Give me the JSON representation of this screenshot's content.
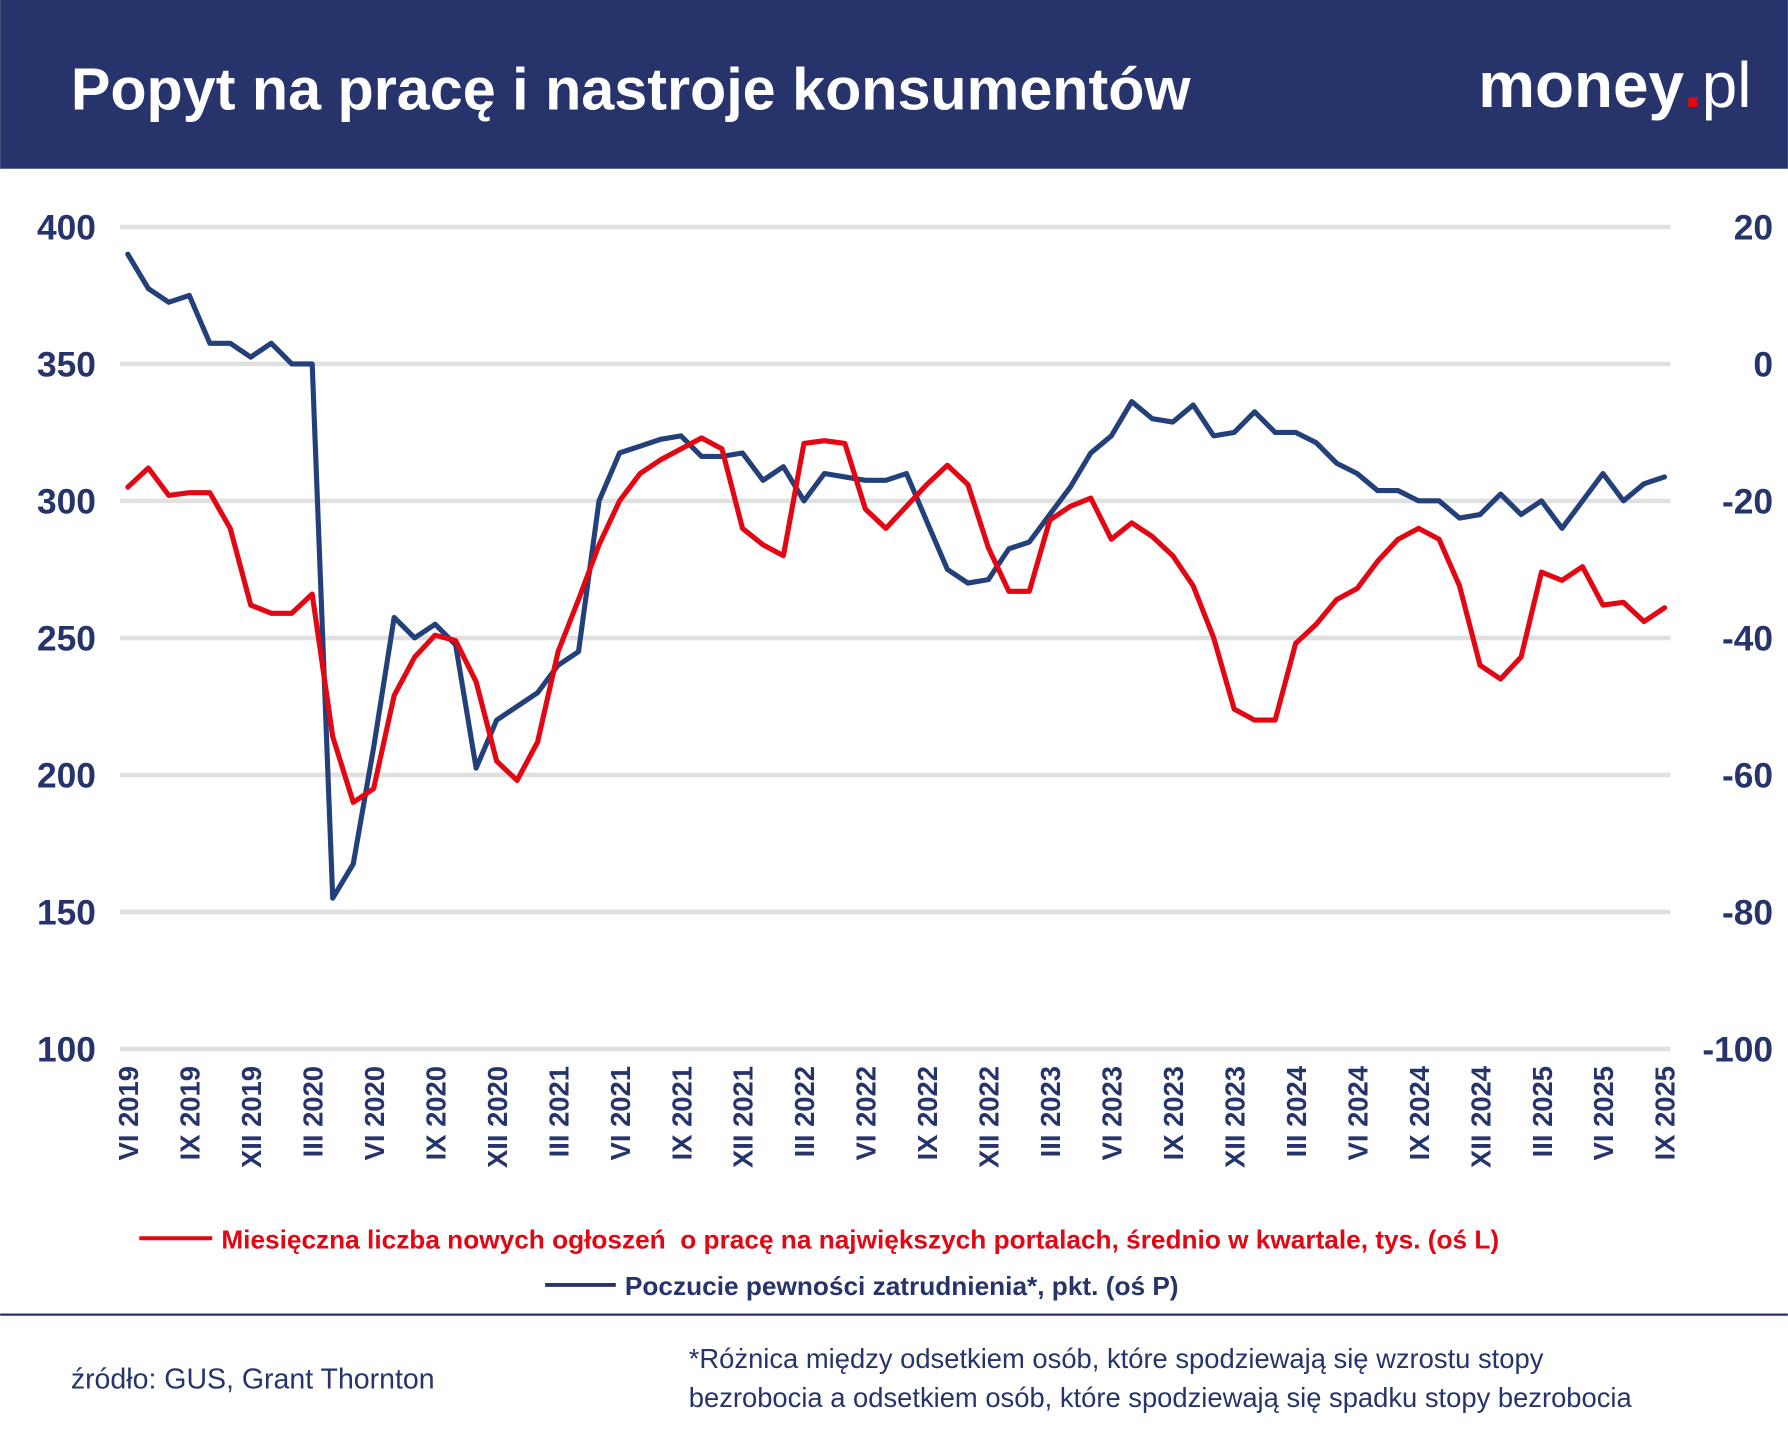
{
  "header": {
    "title": "Popyt na pracę i nastroje konsumentów",
    "logo_text": "money",
    "logo_dot": ".",
    "logo_suffix": "pl"
  },
  "colors": {
    "header_bg": "#27346b",
    "navy": "#27346b",
    "red": "#e30613",
    "blue_line": "#23407a",
    "grid": "#e0e0e0"
  },
  "chart_data": {
    "type": "line",
    "title": "Popyt na pracę i nastroje konsumentów",
    "x_tick_labels": [
      "VI 2019",
      "IX 2019",
      "XII 2019",
      "III 2020",
      "VI 2020",
      "IX 2020",
      "XII 2020",
      "III 2021",
      "VI 2021",
      "IX 2021",
      "XII 2021",
      "III 2022",
      "VI 2022",
      "IX 2022",
      "XII 2022",
      "III 2023",
      "VI 2023",
      "IX 2023",
      "XII 2023",
      "III 2024",
      "VI 2024",
      "IX 2024",
      "XII 2024",
      "III 2025",
      "VI 2025",
      "IX 2025"
    ],
    "x_range": [
      "VI 2019",
      "IX 2025"
    ],
    "x_frequency": "monthly",
    "y_left": {
      "range": [
        100,
        400
      ],
      "ticks": [
        100,
        150,
        200,
        250,
        300,
        350,
        400
      ]
    },
    "y_right": {
      "range": [
        -100,
        20
      ],
      "ticks": [
        -100,
        -80,
        -60,
        -40,
        -20,
        0,
        20
      ]
    },
    "grid": true,
    "legend_placement": "bottom",
    "series": [
      {
        "name": "Miesięczna liczba nowych ogłoszeń  o pracę na największych portalach, średnio w kwartale, tys. (oś L)",
        "axis": "left",
        "color": "#e30613",
        "values": [
          305,
          312,
          302,
          303,
          303,
          290,
          262,
          259,
          259,
          266,
          214,
          190,
          195,
          229,
          243,
          251,
          249,
          234,
          205,
          198,
          212,
          245,
          264,
          284,
          300,
          310,
          315,
          319,
          323,
          319,
          290,
          284,
          280,
          321,
          322,
          321,
          297,
          290,
          298,
          306,
          313,
          306,
          283,
          267,
          267,
          293,
          298,
          301,
          286,
          292,
          287,
          280,
          269,
          250,
          224,
          220,
          220,
          248,
          255,
          264,
          268,
          278,
          286,
          290,
          286,
          269,
          240,
          235,
          243,
          274,
          271,
          276,
          262,
          263,
          256,
          261
        ]
      },
      {
        "name": "Poczucie pewności zatrudnienia*, pkt. (oś P)",
        "axis": "right",
        "color": "#23407a",
        "values": [
          16,
          11,
          9,
          10,
          3,
          3,
          1,
          3,
          0,
          0,
          -78,
          -73,
          -56,
          -37,
          -40,
          -38,
          -41,
          -59,
          -52,
          -50,
          -48,
          -44,
          -42,
          -20,
          -13,
          -12,
          -11,
          -10.5,
          -13.5,
          -13.5,
          -13,
          -17,
          -15,
          -20,
          -16,
          -16.5,
          -17,
          -17,
          -16,
          -23,
          -30,
          -32,
          -31.5,
          -27,
          -26,
          -22,
          -18,
          -13,
          -10.5,
          -5.5,
          -8,
          -8.5,
          -6,
          -10.5,
          -10,
          -7,
          -10,
          -10,
          -11.5,
          -14.5,
          -16,
          -18.5,
          -18.5,
          -20,
          -20,
          -22.5,
          -22,
          -19,
          -22,
          -20,
          -24,
          -20,
          -16,
          -20,
          -17.5,
          -16.5
        ]
      }
    ]
  },
  "footer": {
    "source": "źródło: GUS, Grant Thornton",
    "note_line1": "*Różnica między odsetkiem osób, które spodziewają się wzrostu stopy",
    "note_line2": "bezrobocia a odsetkiem osób, które spodziewają się spadku stopy bezrobocia"
  }
}
